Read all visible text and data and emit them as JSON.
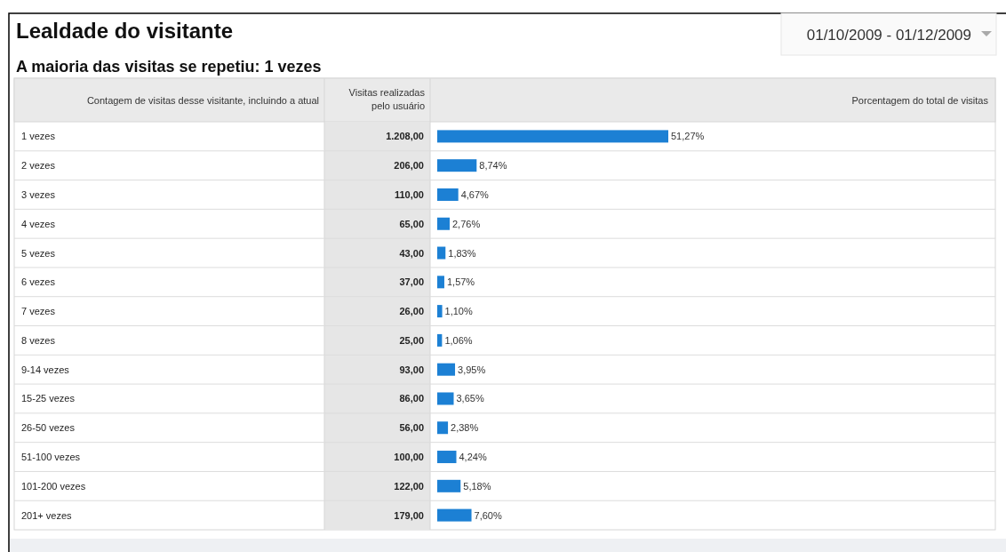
{
  "chart_data": {
    "type": "bar",
    "orientation": "horizontal",
    "title": "Lealdade do visitante",
    "subtitle": "A maioria das visitas se repetiu: 1 vezes",
    "ylabel": "Contagem de visitas desse visitante, incluindo a atual",
    "y2label": "Visitas realizadas pelo usuário",
    "categories": [
      "1 vezes",
      "2 vezes",
      "3 vezes",
      "4 vezes",
      "5 vezes",
      "6 vezes",
      "7 vezes",
      "8 vezes",
      "9-14 vezes",
      "15-25 vezes",
      "26-50 vezes",
      "51-100 vezes",
      "101-200 vezes",
      "201+ vezes"
    ],
    "y2_categories": [
      "1.208,00",
      "206,00",
      "110,00",
      "65,00",
      "43,00",
      "37,00",
      "26,00",
      "25,00",
      "93,00",
      "86,00",
      "56,00",
      "100,00",
      "122,00",
      "179,00"
    ],
    "values": [
      51.27,
      8.74,
      4.67,
      2.76,
      1.83,
      1.57,
      1.1,
      1.06,
      3.95,
      3.65,
      2.38,
      4.24,
      5.18,
      7.6
    ],
    "value_labels": [
      "51,27%",
      "8,74%",
      "4,67%",
      "2,76%",
      "1,83%",
      "1,57%",
      "1,10%",
      "1,06%",
      "3,95%",
      "3,65%",
      "2,38%",
      "4,24%",
      "5,18%",
      "7,60%"
    ],
    "color": "#1c80d4",
    "annotations": [
      "01/10/2009 - 01/12/2009",
      "Porcentagem do total de visitas"
    ]
  }
}
